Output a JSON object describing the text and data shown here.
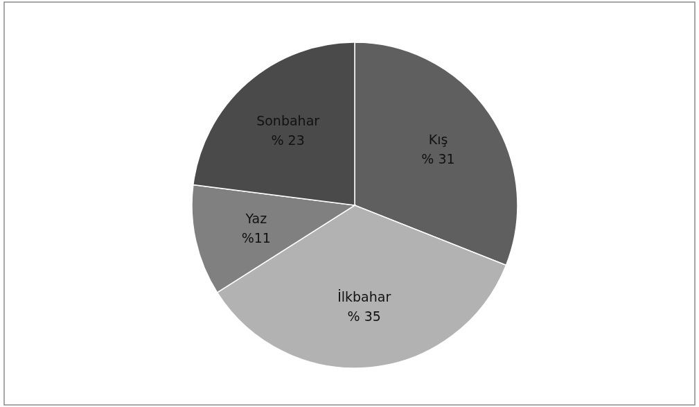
{
  "chart_data": {
    "type": "pie",
    "categories": [
      "Kış",
      "İlkbahar",
      "Yaz",
      "Sonbahar"
    ],
    "values": [
      31,
      35,
      11,
      23
    ],
    "colors": [
      "#5f5f5f",
      "#b2b2b2",
      "#808080",
      "#4a4a4a"
    ],
    "value_labels": [
      "% 31",
      "% 35",
      "%11",
      "% 23"
    ]
  }
}
